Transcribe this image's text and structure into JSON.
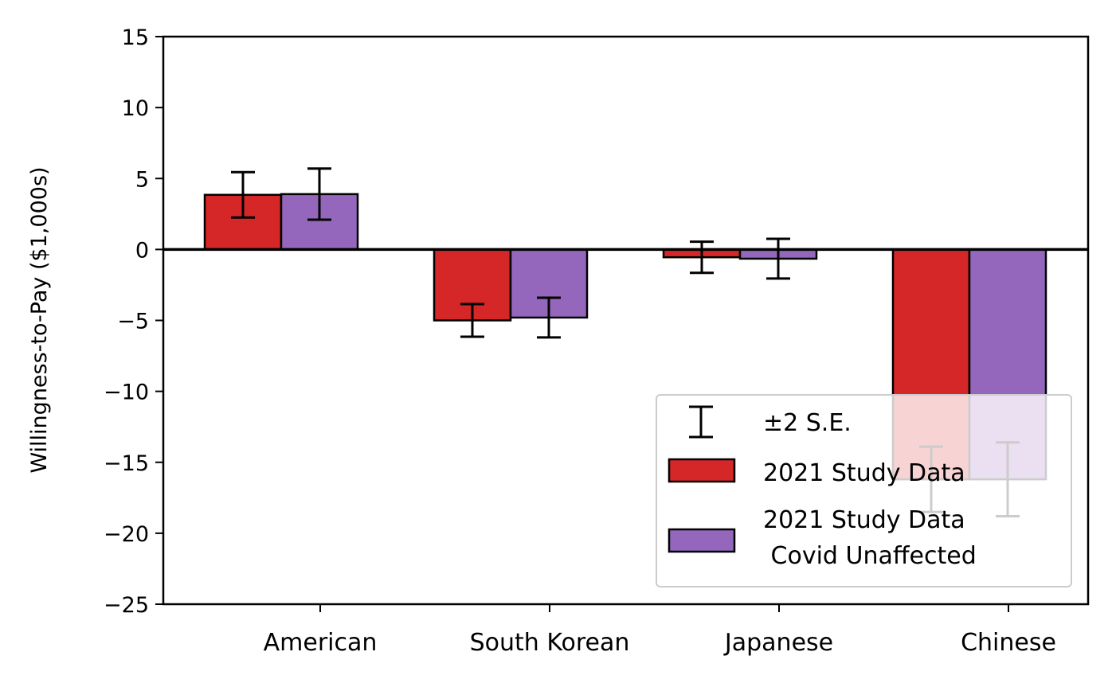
{
  "chart_data": {
    "type": "bar",
    "categories": [
      "American",
      "South Korean",
      "Japanese",
      "Chinese"
    ],
    "series": [
      {
        "name": "2021 Study Data",
        "color": "#d62728",
        "values": [
          3.85,
          -5.0,
          -0.55,
          -16.2
        ],
        "err": [
          1.6,
          1.15,
          1.1,
          2.3
        ]
      },
      {
        "name": "2021 Study Data\n Covid Unaffected",
        "color": "#9467bd",
        "values": [
          3.9,
          -4.8,
          -0.65,
          -16.2
        ],
        "err": [
          1.8,
          1.4,
          1.4,
          2.6
        ]
      }
    ],
    "ylabel": "Willingness-to-Pay ($1,000s)",
    "ylim": [
      -25,
      15
    ],
    "yticks": [
      15,
      10,
      5,
      0,
      -5,
      -10,
      -15,
      -20,
      -25
    ],
    "ytick_labels": [
      "15",
      "10",
      "5",
      "0",
      "−5",
      "−10",
      "−15",
      "−20",
      "−25"
    ],
    "grid": false,
    "legend": {
      "placement": "lower-right",
      "errorbar_label": "±2 S.E.",
      "entries": [
        "2021 Study Data",
        "2021 Study Data\n Covid Unaffected"
      ]
    }
  }
}
